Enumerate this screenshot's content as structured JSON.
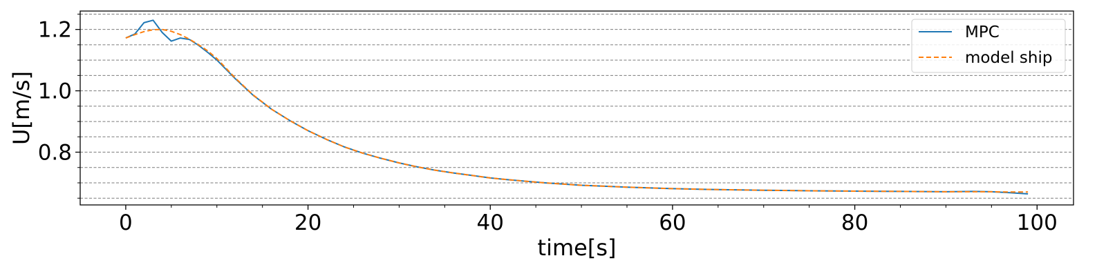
{
  "chart_data": {
    "type": "line",
    "title": "",
    "xlabel": "time[s]",
    "ylabel": "U[m/s]",
    "xlim": [
      -5,
      104
    ],
    "ylim": [
      0.628,
      1.26
    ],
    "x_ticks": [
      0,
      20,
      40,
      60,
      80,
      100
    ],
    "x_tick_labels": [
      "0",
      "20",
      "40",
      "60",
      "80",
      "100"
    ],
    "x_minor_ticks": [
      5,
      10,
      15,
      25,
      30,
      35,
      45,
      50,
      55,
      65,
      70,
      75,
      85,
      90,
      95
    ],
    "y_ticks": [
      0.8,
      1.0,
      1.2
    ],
    "y_tick_labels": [
      "0.8",
      "1.0",
      "1.2"
    ],
    "y_minor_ticks": [
      0.65,
      0.7,
      0.75,
      0.85,
      0.9,
      0.95,
      1.05,
      1.1,
      1.15,
      1.25
    ],
    "grid": "y-dashed",
    "legend_position": "top-right",
    "series": [
      {
        "name": "MPC",
        "color": "#1f77b4",
        "style": "solid",
        "x": [
          0,
          1,
          2,
          3,
          4,
          5,
          6,
          7,
          8,
          9,
          10,
          12,
          14,
          16,
          18,
          20,
          22,
          24,
          26,
          28,
          30,
          32,
          34,
          36,
          38,
          40,
          42,
          44,
          46,
          48,
          50,
          55,
          60,
          65,
          70,
          75,
          80,
          85,
          90,
          93,
          95,
          97,
          99
        ],
        "y": [
          1.172,
          1.185,
          1.222,
          1.23,
          1.19,
          1.162,
          1.172,
          1.167,
          1.148,
          1.125,
          1.1,
          1.04,
          0.985,
          0.94,
          0.903,
          0.87,
          0.842,
          0.817,
          0.797,
          0.78,
          0.765,
          0.752,
          0.741,
          0.732,
          0.724,
          0.716,
          0.71,
          0.705,
          0.7,
          0.696,
          0.692,
          0.686,
          0.681,
          0.678,
          0.676,
          0.674,
          0.673,
          0.672,
          0.671,
          0.672,
          0.671,
          0.668,
          0.664
        ]
      },
      {
        "name": "model ship",
        "color": "#ff7f0e",
        "style": "dashed",
        "x": [
          0,
          1,
          2,
          3,
          4,
          5,
          6,
          7,
          8,
          9,
          10,
          12,
          14,
          16,
          18,
          20,
          22,
          24,
          26,
          28,
          30,
          32,
          34,
          36,
          38,
          40,
          42,
          44,
          46,
          48,
          50,
          55,
          60,
          65,
          70,
          75,
          80,
          85,
          90,
          93,
          95,
          97,
          99
        ],
        "y": [
          1.172,
          1.183,
          1.193,
          1.199,
          1.2,
          1.194,
          1.183,
          1.168,
          1.15,
          1.13,
          1.105,
          1.042,
          0.986,
          0.94,
          0.903,
          0.87,
          0.842,
          0.817,
          0.797,
          0.78,
          0.765,
          0.752,
          0.741,
          0.732,
          0.724,
          0.716,
          0.71,
          0.705,
          0.7,
          0.696,
          0.692,
          0.686,
          0.681,
          0.678,
          0.676,
          0.674,
          0.673,
          0.672,
          0.671,
          0.671,
          0.671,
          0.67,
          0.67
        ]
      }
    ]
  }
}
